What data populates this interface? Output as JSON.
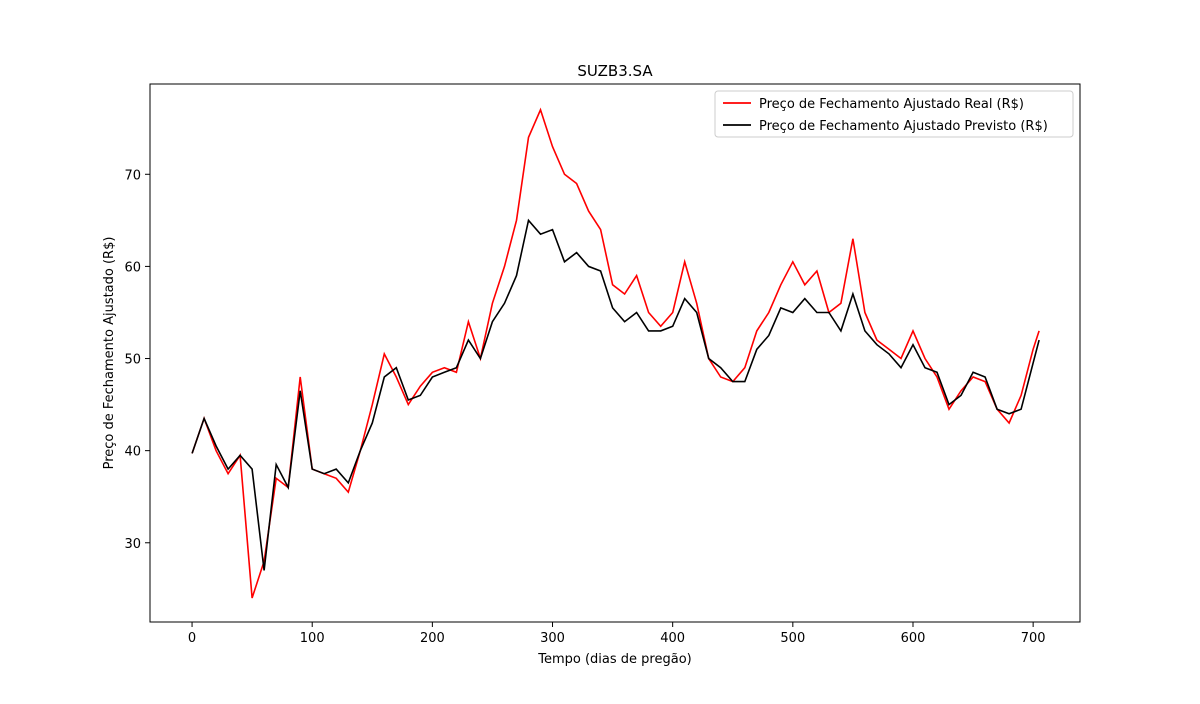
{
  "chart_data": {
    "type": "line",
    "title": "SUZB3.SA",
    "x_label": "Tempo (dias de pregão)",
    "y_label": "Preço de Fechamento Ajustado (R$)",
    "x": [
      0,
      10,
      20,
      30,
      40,
      50,
      60,
      70,
      80,
      90,
      100,
      110,
      120,
      130,
      140,
      150,
      160,
      170,
      180,
      190,
      200,
      210,
      220,
      230,
      240,
      250,
      260,
      270,
      280,
      290,
      300,
      310,
      320,
      330,
      340,
      350,
      360,
      370,
      380,
      390,
      400,
      410,
      420,
      430,
      440,
      450,
      460,
      470,
      480,
      490,
      500,
      510,
      520,
      530,
      540,
      550,
      560,
      570,
      580,
      590,
      600,
      610,
      620,
      630,
      640,
      650,
      660,
      670,
      680,
      690,
      700,
      705
    ],
    "series": [
      {
        "name": "Preço de Fechamento Ajustado Real (R$)",
        "color": "#ff0000",
        "values": [
          39.7,
          43.5,
          40,
          37.5,
          39.5,
          24,
          28,
          37,
          36,
          48,
          38,
          37.5,
          37,
          35.5,
          40,
          45,
          50.5,
          48,
          45,
          47,
          48.5,
          49,
          48.5,
          54,
          50,
          56,
          60,
          65,
          74,
          77,
          73,
          70,
          69,
          66,
          64,
          58,
          57,
          59,
          55,
          53.5,
          55,
          60.5,
          56,
          50,
          48,
          47.5,
          49,
          53,
          55,
          58,
          60.5,
          58,
          59.5,
          55,
          56,
          63,
          55,
          52,
          51,
          50,
          53,
          50,
          48,
          44.5,
          46.5,
          48,
          47.5,
          44.5,
          43,
          46,
          51,
          53
        ]
      },
      {
        "name": "Preço de Fechamento Ajustado Previsto (R$)",
        "color": "#000000",
        "values": [
          39.7,
          43.5,
          40.5,
          38,
          39.5,
          38,
          27,
          38.5,
          36,
          46.5,
          38,
          37.5,
          38,
          36.5,
          40,
          43,
          48,
          49,
          45.5,
          46,
          48,
          48.5,
          49,
          52,
          50,
          54,
          56,
          59,
          65,
          63.5,
          64,
          60.5,
          61.5,
          60,
          59.5,
          55.5,
          54,
          55,
          53,
          53,
          53.5,
          56.5,
          55,
          50,
          49,
          47.5,
          47.5,
          51,
          52.5,
          55.5,
          55,
          56.5,
          55,
          55,
          53,
          57,
          53,
          51.5,
          50.5,
          49,
          51.5,
          49,
          48.5,
          45,
          46,
          48.5,
          48,
          44.5,
          44,
          44.5,
          49.5,
          52
        ]
      }
    ],
    "xlim": [
      -35,
      739
    ],
    "ylim": [
      21.4,
      79.8
    ],
    "xticks": [
      0,
      100,
      200,
      300,
      400,
      500,
      600,
      700
    ],
    "yticks": [
      30,
      40,
      50,
      60,
      70
    ],
    "legend": "upper right"
  }
}
